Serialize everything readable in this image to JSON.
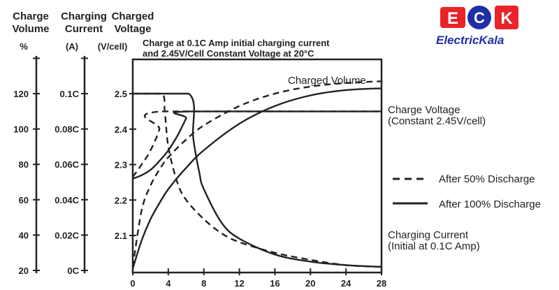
{
  "logo": {
    "text": "ElectricKala",
    "letters": [
      "E",
      "C",
      "K"
    ],
    "colors": {
      "red": "#e8242a",
      "blue": "#1f2fa8"
    }
  },
  "headers": {
    "volume": [
      "Charge",
      "Volume"
    ],
    "current": [
      "Charging",
      "Current"
    ],
    "voltage": [
      "Charged",
      "Voltage"
    ]
  },
  "units": {
    "volume": "%",
    "current": "(A)",
    "voltage": "(V/cell)"
  },
  "chart_data": {
    "type": "line",
    "title": [
      "Charge at 0.1C Amp initial charging current",
      "and 2.45V/Cell Constant Voltage at 20°C"
    ],
    "xlim": [
      0,
      28
    ],
    "x_ticks": [
      "0",
      "4",
      "8",
      "12",
      "16",
      "20",
      "24",
      "28"
    ],
    "axes": {
      "volume": {
        "ticks": [
          "20",
          "40",
          "60",
          "80",
          "100",
          "120"
        ],
        "range": [
          20,
          140
        ]
      },
      "current": {
        "ticks": [
          "0C",
          "0.02C",
          "0.04C",
          "0.06C",
          "0.08C",
          "0.1C"
        ],
        "range": [
          0,
          0.12
        ]
      },
      "voltage": {
        "ticks": [
          "2.1",
          "2.2",
          "2.3",
          "2.4",
          "2.5"
        ],
        "range": [
          2.0,
          2.6
        ]
      }
    },
    "legend": {
      "placement": "right",
      "dashed": "After 50% Discharge",
      "solid": "After 100% Discharge"
    },
    "labels": {
      "charged_volume": "Charged Volume",
      "charge_voltage": [
        "Charge Voltage",
        "(Constant 2.45V/cell)"
      ],
      "charging_current": [
        "Charging Current",
        "(Initial at 0.1C Amp)"
      ]
    },
    "series": [
      {
        "group": "Charged Volume",
        "style": "dashed",
        "axis": "volume",
        "x": [
          0,
          1,
          2,
          3,
          4,
          6,
          8,
          12,
          16,
          20,
          24,
          28
        ],
        "y": [
          22,
          54,
          68,
          77,
          84,
          94,
          102,
          113,
          120,
          124,
          126,
          127
        ]
      },
      {
        "group": "Charged Volume",
        "style": "solid",
        "axis": "volume",
        "x": [
          0,
          1,
          2,
          3,
          4,
          6,
          8,
          12,
          16,
          20,
          24,
          28
        ],
        "y": [
          21,
          37,
          49,
          58,
          66,
          78,
          88,
          103,
          113,
          119,
          122,
          123
        ]
      },
      {
        "group": "Charge Voltage",
        "style": "dashed",
        "axis": "voltage",
        "x": [
          0,
          1,
          2,
          3,
          3.2,
          28
        ],
        "y": [
          2.265,
          2.3,
          2.34,
          2.4,
          2.45,
          2.45
        ]
      },
      {
        "group": "Charge Voltage",
        "style": "solid",
        "axis": "voltage",
        "x": [
          0,
          1,
          2,
          3,
          4,
          5,
          6,
          6.3,
          28
        ],
        "y": [
          2.26,
          2.27,
          2.285,
          2.31,
          2.34,
          2.38,
          2.43,
          2.45,
          2.45
        ]
      },
      {
        "group": "Charging Current",
        "style": "dashed",
        "axis": "current",
        "x": [
          0,
          3.2,
          3.6,
          4,
          5,
          6,
          8,
          10,
          12,
          16,
          20,
          24,
          28
        ],
        "y": [
          0.1,
          0.1,
          0.09,
          0.07,
          0.05,
          0.04,
          0.029,
          0.021,
          0.016,
          0.01,
          0.006,
          0.003,
          0.002
        ]
      },
      {
        "group": "Charging Current",
        "style": "solid",
        "axis": "current",
        "x": [
          0,
          6.3,
          6.8,
          7.5,
          8,
          10,
          12,
          16,
          20,
          24,
          28
        ],
        "y": [
          0.1,
          0.1,
          0.075,
          0.055,
          0.046,
          0.027,
          0.018,
          0.009,
          0.005,
          0.003,
          0.002
        ]
      }
    ]
  }
}
